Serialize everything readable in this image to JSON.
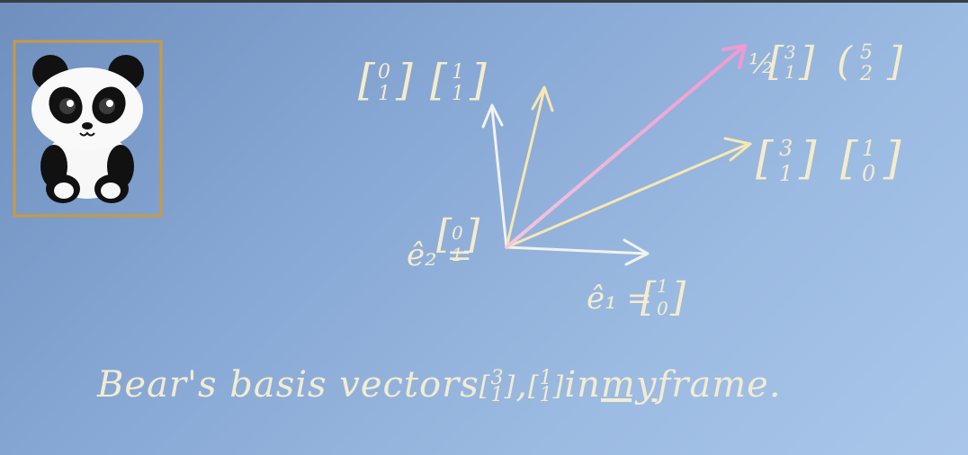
{
  "labels": {
    "e2_hat": "ê₂ = [0 1]",
    "e2_hat_top": "0",
    "e2_hat_bottom": "1",
    "e1_hat_top": "1",
    "e1_hat_bottom": "0",
    "e1_name": "ê₁ =",
    "e2_name": "ê₂ =",
    "yellow_top_left_a_top": "0",
    "yellow_top_left_a_bottom": "1",
    "yellow_top_left_b_top": "1",
    "yellow_top_left_b_bottom": "1",
    "right_a_top": "3",
    "right_a_bottom": "1",
    "right_b_top": "1",
    "right_b_bottom": "0",
    "pink_coef": "½",
    "pink_a_top": "3",
    "pink_a_bottom": "1",
    "pink_b_top": "5",
    "pink_b_bottom": "2"
  },
  "caption": {
    "part1": "Bear's basis vectors ",
    "v1_top": "3",
    "v1_bottom": "1",
    "comma": ",",
    "v2_top": "1",
    "v2_bottom": "1",
    "part2": " in ",
    "my": "my",
    "part3": " frame."
  },
  "colors": {
    "chalk_white": "#f2f2ee",
    "chalk_yellow": "#f6e7b3",
    "chalk_pink": "#f7cde3",
    "frame_border": "#c99a43"
  }
}
